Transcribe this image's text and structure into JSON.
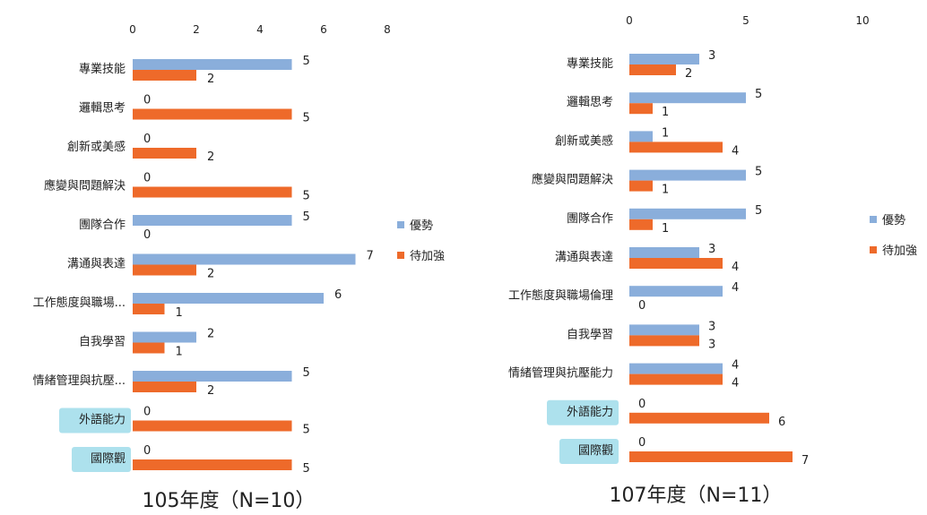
{
  "colors": {
    "advantage": "#8aaedb",
    "improve": "#ee6a2a",
    "highlight": "#9fdcea"
  },
  "chart_data": [
    {
      "type": "bar",
      "orientation": "horizontal",
      "caption": "105年度（N=10）",
      "categories": [
        "專業技能",
        "邏輯思考",
        "創新或美感",
        "應變與問題解決",
        "團隊合作",
        "溝通與表達",
        "工作態度與職場...",
        "自我學習",
        "情緒管理與抗壓...",
        "外語能力",
        "國際觀"
      ],
      "highlighted_categories": [
        "外語能力",
        "國際觀"
      ],
      "series": [
        {
          "name": "優勢",
          "values": [
            5,
            0,
            0,
            0,
            5,
            7,
            6,
            2,
            5,
            0,
            0
          ]
        },
        {
          "name": "待加強",
          "values": [
            2,
            5,
            2,
            5,
            0,
            2,
            1,
            1,
            2,
            5,
            5
          ]
        }
      ],
      "xlim": [
        0,
        8
      ],
      "xticks": [
        "0",
        "2",
        "4",
        "6",
        "8"
      ],
      "legend": "right",
      "grid": false
    },
    {
      "type": "bar",
      "orientation": "horizontal",
      "caption": "107年度（N=11）",
      "categories": [
        "專業技能",
        "邏輯思考",
        "創新或美感",
        "應變與問題解決",
        "團隊合作",
        "溝通與表達",
        "工作態度與職場倫理",
        "自我學習",
        "情緒管理與抗壓能力",
        "外語能力",
        "國際觀"
      ],
      "highlighted_categories": [
        "外語能力",
        "國際觀"
      ],
      "series": [
        {
          "name": "優勢",
          "values": [
            3,
            5,
            1,
            5,
            5,
            3,
            4,
            3,
            4,
            0,
            0
          ]
        },
        {
          "name": "待加強",
          "values": [
            2,
            1,
            4,
            1,
            1,
            4,
            0,
            3,
            4,
            6,
            7
          ]
        }
      ],
      "xlim": [
        0,
        10
      ],
      "xticks": [
        "0",
        "5",
        "10"
      ],
      "legend": "right",
      "grid": false
    }
  ]
}
